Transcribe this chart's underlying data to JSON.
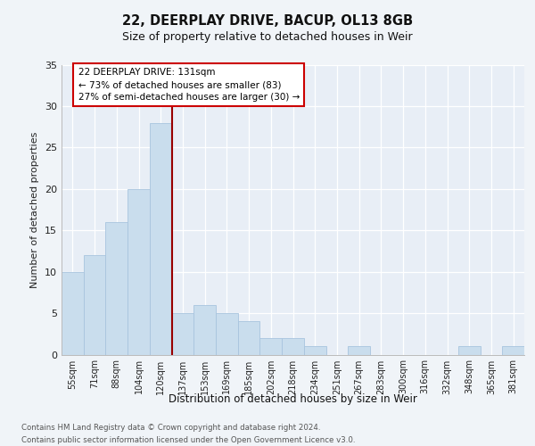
{
  "title1": "22, DEERPLAY DRIVE, BACUP, OL13 8GB",
  "title2": "Size of property relative to detached houses in Weir",
  "xlabel": "Distribution of detached houses by size in Weir",
  "ylabel": "Number of detached properties",
  "categories": [
    "55sqm",
    "71sqm",
    "88sqm",
    "104sqm",
    "120sqm",
    "137sqm",
    "153sqm",
    "169sqm",
    "185sqm",
    "202sqm",
    "218sqm",
    "234sqm",
    "251sqm",
    "267sqm",
    "283sqm",
    "300sqm",
    "316sqm",
    "332sqm",
    "348sqm",
    "365sqm",
    "381sqm"
  ],
  "values": [
    10,
    12,
    16,
    20,
    28,
    5,
    6,
    5,
    4,
    2,
    2,
    1,
    0,
    1,
    0,
    0,
    0,
    0,
    1,
    0,
    1
  ],
  "bar_color": "#c9dded",
  "bar_edge_color": "#a8c4de",
  "vline_x": 4.5,
  "vline_color": "#990000",
  "annotation_text": "22 DEERPLAY DRIVE: 131sqm\n← 73% of detached houses are smaller (83)\n27% of semi-detached houses are larger (30) →",
  "annotation_box_facecolor": "#ffffff",
  "annotation_box_edgecolor": "#cc0000",
  "ylim": [
    0,
    35
  ],
  "yticks": [
    0,
    5,
    10,
    15,
    20,
    25,
    30,
    35
  ],
  "footer1": "Contains HM Land Registry data © Crown copyright and database right 2024.",
  "footer2": "Contains public sector information licensed under the Open Government Licence v3.0.",
  "bg_color": "#f0f4f8",
  "plot_bg_color": "#e8eef6"
}
